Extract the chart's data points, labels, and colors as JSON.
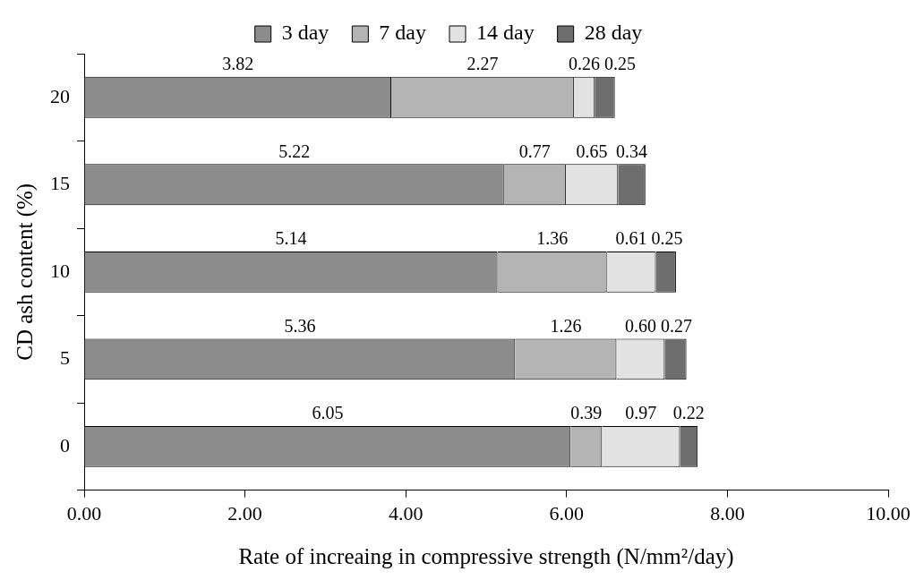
{
  "chart_data": {
    "type": "bar",
    "orientation": "horizontal",
    "stacked": true,
    "ylabel": "CD ash content (%)",
    "xlabel": "Rate of increaing in compressive strength (N/mm²/day)",
    "categories": [
      "20",
      "15",
      "10",
      "5",
      "0"
    ],
    "series": [
      {
        "name": "3 day",
        "color": "#8c8c8c",
        "values": [
          3.82,
          5.22,
          5.14,
          5.36,
          6.05
        ],
        "value_labels": [
          "3.82",
          "5.22",
          "5.14",
          "5.36",
          "6.05"
        ]
      },
      {
        "name": "7 day",
        "color": "#b4b4b4",
        "values": [
          2.27,
          0.77,
          1.36,
          1.26,
          0.39
        ],
        "value_labels": [
          "2.27",
          "0.77",
          "1.36",
          "1.26",
          "0.39"
        ]
      },
      {
        "name": "14 day",
        "color": "#e2e2e2",
        "values": [
          0.26,
          0.65,
          0.61,
          0.6,
          0.97
        ],
        "value_labels": [
          "0.26",
          "0.65",
          "0.61",
          "0.60",
          "0.97"
        ]
      },
      {
        "name": "28 day",
        "color": "#6e6e6e",
        "values": [
          0.25,
          0.34,
          0.25,
          0.27,
          0.22
        ],
        "value_labels": [
          "0.25",
          "0.34",
          "0.25",
          "0.27",
          "0.22"
        ]
      }
    ],
    "xlim": [
      0,
      10
    ],
    "xticks": [
      {
        "value": 0,
        "label": "0.00"
      },
      {
        "value": 2,
        "label": "2.00"
      },
      {
        "value": 4,
        "label": "4.00"
      },
      {
        "value": 6,
        "label": "6.00"
      },
      {
        "value": 8,
        "label": "8.00"
      },
      {
        "value": 10,
        "label": "10.00"
      }
    ],
    "grid": false,
    "legend": "top"
  }
}
